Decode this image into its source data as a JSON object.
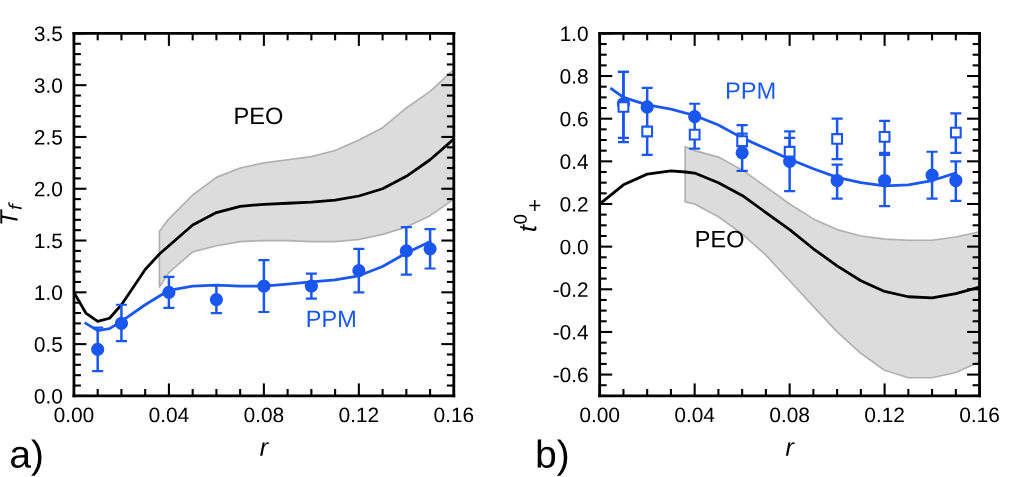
{
  "chart_data": [
    {
      "type": "line",
      "xlabel": "r",
      "ylabel": "T$_{f}$",
      "xlim": [
        0,
        0.16
      ],
      "ylim": [
        0,
        3.5
      ],
      "xticks": [
        {
          "value": 0,
          "label": "0.00"
        },
        {
          "value": 0.04,
          "label": "0.04"
        },
        {
          "value": 0.08,
          "label": "0.08"
        },
        {
          "value": 0.12,
          "label": "0.12"
        },
        {
          "value": 0.16,
          "label": "0.16"
        }
      ],
      "yticks": [
        {
          "value": 0,
          "label": "0.0"
        },
        {
          "value": 0.5,
          "label": "0.5"
        },
        {
          "value": 1,
          "label": "1.0"
        },
        {
          "value": 1.5,
          "label": "1.5"
        },
        {
          "value": 2,
          "label": "2.0"
        },
        {
          "value": 2.5,
          "label": "2.5"
        },
        {
          "value": 3,
          "label": "3.0"
        },
        {
          "value": 3.5,
          "label": "3.5"
        }
      ],
      "grid": false,
      "legend": false,
      "annotations": [
        "a)"
      ],
      "series": [
        {
          "name": "PEO",
          "color": "#000000",
          "x": [
            0,
            0.005,
            0.01,
            0.015,
            0.02,
            0.025,
            0.03,
            0.036,
            0.04,
            0.05,
            0.06,
            0.07,
            0.08,
            0.09,
            0.1,
            0.11,
            0.12,
            0.13,
            0.14,
            0.15,
            0.16
          ],
          "values": [
            1.0,
            0.8,
            0.72,
            0.75,
            0.88,
            1.05,
            1.22,
            1.37,
            1.45,
            1.65,
            1.77,
            1.83,
            1.85,
            1.86,
            1.87,
            1.89,
            1.93,
            2.0,
            2.12,
            2.28,
            2.48
          ],
          "lower": [
            null,
            null,
            null,
            null,
            null,
            null,
            null,
            1.05,
            1.19,
            1.39,
            1.45,
            1.49,
            1.5,
            1.5,
            1.49,
            1.49,
            1.51,
            1.56,
            1.63,
            1.74,
            1.9
          ],
          "upper": [
            null,
            null,
            null,
            null,
            null,
            null,
            null,
            1.59,
            1.71,
            1.94,
            2.11,
            2.2,
            2.25,
            2.28,
            2.31,
            2.37,
            2.47,
            2.59,
            2.78,
            2.94,
            3.15
          ]
        },
        {
          "name": "PPM",
          "color": "#1a56f0",
          "x": [
            0.005,
            0.01,
            0.015,
            0.02,
            0.03,
            0.04,
            0.05,
            0.06,
            0.07,
            0.08,
            0.09,
            0.1,
            0.11,
            0.12,
            0.13,
            0.14,
            0.15
          ],
          "values": [
            0.7,
            0.63,
            0.65,
            0.72,
            0.88,
            1.02,
            1.06,
            1.07,
            1.06,
            1.06,
            1.08,
            1.1,
            1.12,
            1.16,
            1.25,
            1.38,
            1.49
          ]
        },
        {
          "type": "scatter",
          "marker": "circle",
          "color": "#1a56f0",
          "x": [
            0.01,
            0.02,
            0.04,
            0.06,
            0.08,
            0.1,
            0.12,
            0.14,
            0.15
          ],
          "values": [
            0.45,
            0.7,
            1.0,
            0.93,
            1.06,
            1.06,
            1.21,
            1.4,
            1.42
          ],
          "errors": [
            [
              0.24,
              0.66
            ],
            [
              0.53,
              0.88
            ],
            [
              0.85,
              1.15
            ],
            [
              0.8,
              1.07
            ],
            [
              0.81,
              1.31
            ],
            [
              0.94,
              1.18
            ],
            [
              1.0,
              1.42
            ],
            [
              1.17,
              1.63
            ],
            [
              1.23,
              1.61
            ]
          ]
        }
      ]
    },
    {
      "type": "line",
      "xlabel": "r",
      "ylabel": "t$^{0}$$_{+}$",
      "xlim": [
        0,
        0.16
      ],
      "ylim": [
        -0.7,
        1.0
      ],
      "xticks": [
        {
          "value": 0,
          "label": "0.00"
        },
        {
          "value": 0.04,
          "label": "0.04"
        },
        {
          "value": 0.08,
          "label": "0.08"
        },
        {
          "value": 0.12,
          "label": "0.12"
        },
        {
          "value": 0.16,
          "label": "0.16"
        }
      ],
      "yticks": [
        {
          "value": -0.6,
          "label": "-0.6"
        },
        {
          "value": -0.4,
          "label": "-0.4"
        },
        {
          "value": -0.2,
          "label": "-0.2"
        },
        {
          "value": 0,
          "label": "0.0"
        },
        {
          "value": 0.2,
          "label": "0.2"
        },
        {
          "value": 0.4,
          "label": "0.4"
        },
        {
          "value": 0.6,
          "label": "0.6"
        },
        {
          "value": 0.8,
          "label": "0.8"
        },
        {
          "value": 1.0,
          "label": "1.0"
        }
      ],
      "grid": false,
      "legend": false,
      "annotations": [
        "b)"
      ],
      "series": [
        {
          "name": "PEO",
          "color": "#000000",
          "x": [
            0,
            0.01,
            0.02,
            0.03,
            0.036,
            0.04,
            0.05,
            0.06,
            0.07,
            0.08,
            0.09,
            0.1,
            0.11,
            0.12,
            0.13,
            0.14,
            0.15,
            0.16
          ],
          "values": [
            0.2,
            0.29,
            0.34,
            0.355,
            0.35,
            0.345,
            0.3,
            0.24,
            0.16,
            0.08,
            -0.01,
            -0.09,
            -0.16,
            -0.21,
            -0.235,
            -0.24,
            -0.22,
            -0.19
          ],
          "lower": [
            null,
            null,
            null,
            null,
            0.21,
            0.2,
            0.14,
            0.06,
            -0.04,
            -0.16,
            -0.28,
            -0.4,
            -0.5,
            -0.58,
            -0.615,
            -0.615,
            -0.59,
            -0.54
          ],
          "upper": [
            null,
            null,
            null,
            null,
            0.47,
            0.45,
            0.42,
            0.36,
            0.28,
            0.2,
            0.13,
            0.08,
            0.05,
            0.035,
            0.03,
            0.03,
            0.045,
            0.07
          ]
        },
        {
          "name": "PPM",
          "color": "#1a56f0",
          "x": [
            0.005,
            0.01,
            0.02,
            0.03,
            0.04,
            0.05,
            0.06,
            0.07,
            0.08,
            0.09,
            0.1,
            0.11,
            0.12,
            0.13,
            0.14,
            0.15
          ],
          "values": [
            0.74,
            0.7,
            0.665,
            0.645,
            0.615,
            0.57,
            0.51,
            0.46,
            0.41,
            0.365,
            0.325,
            0.3,
            0.285,
            0.29,
            0.31,
            0.345
          ]
        },
        {
          "type": "scatter",
          "marker": "circle",
          "color": "#1a56f0",
          "x": [
            0.01,
            0.02,
            0.04,
            0.06,
            0.08,
            0.1,
            0.12,
            0.14,
            0.15
          ],
          "values": [
            0.67,
            0.655,
            0.61,
            0.44,
            0.4,
            0.31,
            0.31,
            0.335,
            0.31
          ],
          "errors": [
            [
              0.49,
              0.82
            ],
            null,
            null,
            [
              0.355,
              0.53
            ],
            [
              0.26,
              0.51
            ],
            [
              0.225,
              0.385
            ],
            [
              0.19,
              0.43
            ],
            [
              0.225,
              0.445
            ],
            [
              0.215,
              0.4
            ]
          ]
        },
        {
          "type": "scatter",
          "marker": "square",
          "color": "#1a56f0",
          "x": [
            0.01,
            0.02,
            0.04,
            0.06,
            0.08,
            0.1,
            0.12,
            0.15
          ],
          "values": [
            0.655,
            0.54,
            0.525,
            0.495,
            0.445,
            0.505,
            0.515,
            0.535
          ],
          "errors": [
            [
              0.51,
              0.82
            ],
            [
              0.43,
              0.745
            ],
            [
              0.46,
              0.67
            ],
            [
              0.47,
              0.57
            ],
            [
              0.445,
              0.54
            ],
            [
              0.41,
              0.6
            ],
            [
              0.44,
              0.59
            ],
            [
              0.44,
              0.625
            ]
          ]
        }
      ]
    }
  ]
}
